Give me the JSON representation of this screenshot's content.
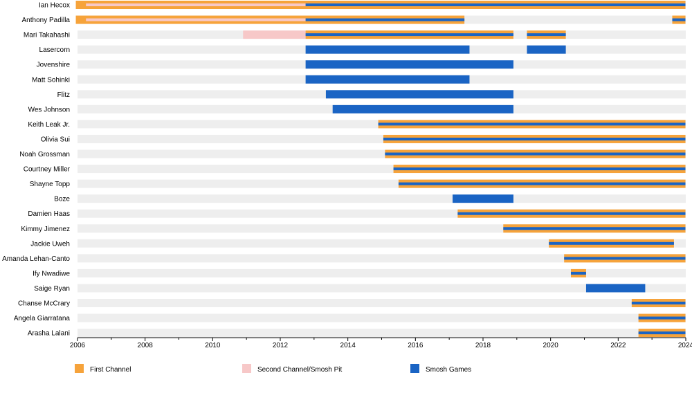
{
  "chart_data": {
    "type": "timeline",
    "title": "",
    "xlabel": "",
    "ylabel": "",
    "xlim": [
      2006.0,
      2024.0
    ],
    "x_ticks": [
      "2006",
      "2008",
      "2010",
      "2012",
      "2014",
      "2016",
      "2018",
      "2020",
      "2022",
      "2024"
    ],
    "categories": [
      "First Channel",
      "Second Channel/Smosh Pit",
      "Smosh Games"
    ],
    "colors": {
      "First Channel": "#f6a33b",
      "Second Channel/Smosh Pit": "#f7c8c8",
      "Smosh Games": "#1a64c4",
      "row_background": "#eeeeee"
    },
    "legend": {
      "placement": "bottom",
      "items": [
        {
          "label": "First Channel",
          "color": "#f6a33b"
        },
        {
          "label": "Second Channel/Smosh Pit",
          "color": "#f7c8c8"
        },
        {
          "label": "Smosh Games",
          "color": "#1a64c4"
        }
      ]
    },
    "rows": [
      {
        "name": "Ian Hecox",
        "periods": [
          {
            "category": "First Channel",
            "start": 2005.95,
            "end": 2023.99
          },
          {
            "category": "Second Channel/Smosh Pit",
            "start": 2006.25,
            "end": 2012.75
          },
          {
            "category": "Smosh Games",
            "start": 2012.75,
            "end": 2023.99
          }
        ]
      },
      {
        "name": "Anthony Padilla",
        "periods": [
          {
            "category": "First Channel",
            "start": 2005.95,
            "end": 2017.45
          },
          {
            "category": "Second Channel/Smosh Pit",
            "start": 2006.25,
            "end": 2012.75
          },
          {
            "category": "Smosh Games",
            "start": 2012.75,
            "end": 2017.45
          },
          {
            "category": "First Channel",
            "start": 2023.6,
            "end": 2023.99
          },
          {
            "category": "Smosh Games",
            "start": 2023.6,
            "end": 2023.99
          }
        ]
      },
      {
        "name": "Mari Takahashi",
        "periods": [
          {
            "category": "Second Channel/Smosh Pit",
            "start": 2010.9,
            "end": 2012.75
          },
          {
            "category": "First Channel",
            "start": 2012.75,
            "end": 2018.9
          },
          {
            "category": "Smosh Games",
            "start": 2012.75,
            "end": 2018.9
          },
          {
            "category": "First Channel",
            "start": 2019.3,
            "end": 2020.45
          },
          {
            "category": "Smosh Games",
            "start": 2019.3,
            "end": 2020.45
          }
        ]
      },
      {
        "name": "Lasercorn",
        "periods": [
          {
            "category": "Smosh Games",
            "start": 2012.75,
            "end": 2017.6
          },
          {
            "category": "Smosh Games",
            "start": 2019.3,
            "end": 2020.45
          }
        ]
      },
      {
        "name": "Jovenshire",
        "periods": [
          {
            "category": "Smosh Games",
            "start": 2012.75,
            "end": 2018.9
          }
        ]
      },
      {
        "name": "Matt Sohinki",
        "periods": [
          {
            "category": "Smosh Games",
            "start": 2012.75,
            "end": 2017.6
          }
        ]
      },
      {
        "name": "Flitz",
        "periods": [
          {
            "category": "Smosh Games",
            "start": 2013.35,
            "end": 2018.9
          }
        ]
      },
      {
        "name": "Wes Johnson",
        "periods": [
          {
            "category": "Smosh Games",
            "start": 2013.55,
            "end": 2018.9
          }
        ]
      },
      {
        "name": "Keith Leak Jr.",
        "periods": [
          {
            "category": "First Channel",
            "start": 2014.9,
            "end": 2023.99
          },
          {
            "category": "Smosh Games",
            "start": 2014.9,
            "end": 2023.99
          }
        ]
      },
      {
        "name": "Olivia Sui",
        "periods": [
          {
            "category": "First Channel",
            "start": 2015.05,
            "end": 2023.99
          },
          {
            "category": "Smosh Games",
            "start": 2015.05,
            "end": 2023.99
          }
        ]
      },
      {
        "name": "Noah Grossman",
        "periods": [
          {
            "category": "First Channel",
            "start": 2015.1,
            "end": 2023.99
          },
          {
            "category": "Smosh Games",
            "start": 2015.1,
            "end": 2023.99
          }
        ]
      },
      {
        "name": "Courtney Miller",
        "periods": [
          {
            "category": "First Channel",
            "start": 2015.35,
            "end": 2023.99
          },
          {
            "category": "Smosh Games",
            "start": 2015.35,
            "end": 2023.99
          }
        ]
      },
      {
        "name": "Shayne Topp",
        "periods": [
          {
            "category": "First Channel",
            "start": 2015.5,
            "end": 2023.99
          },
          {
            "category": "Smosh Games",
            "start": 2015.5,
            "end": 2023.99
          }
        ]
      },
      {
        "name": "Boze",
        "periods": [
          {
            "category": "Smosh Games",
            "start": 2017.1,
            "end": 2018.9
          }
        ]
      },
      {
        "name": "Damien Haas",
        "periods": [
          {
            "category": "First Channel",
            "start": 2017.25,
            "end": 2023.99
          },
          {
            "category": "Smosh Games",
            "start": 2017.25,
            "end": 2023.99
          }
        ]
      },
      {
        "name": "Kimmy Jimenez",
        "periods": [
          {
            "category": "First Channel",
            "start": 2018.6,
            "end": 2023.99
          },
          {
            "category": "Smosh Games",
            "start": 2018.6,
            "end": 2023.99
          }
        ]
      },
      {
        "name": "Jackie Uweh",
        "periods": [
          {
            "category": "First Channel",
            "start": 2019.95,
            "end": 2023.65
          },
          {
            "category": "Smosh Games",
            "start": 2019.95,
            "end": 2023.65
          }
        ]
      },
      {
        "name": "Amanda Lehan-Canto",
        "periods": [
          {
            "category": "First Channel",
            "start": 2020.4,
            "end": 2023.99
          },
          {
            "category": "Smosh Games",
            "start": 2020.4,
            "end": 2023.99
          }
        ]
      },
      {
        "name": "Ify Nwadiwe",
        "periods": [
          {
            "category": "First Channel",
            "start": 2020.6,
            "end": 2021.05
          },
          {
            "category": "Smosh Games",
            "start": 2020.6,
            "end": 2021.05
          }
        ]
      },
      {
        "name": "Saige Ryan",
        "periods": [
          {
            "category": "Smosh Games",
            "start": 2021.05,
            "end": 2022.8
          }
        ]
      },
      {
        "name": "Chanse McCrary",
        "periods": [
          {
            "category": "First Channel",
            "start": 2022.4,
            "end": 2023.99
          },
          {
            "category": "Smosh Games",
            "start": 2022.4,
            "end": 2023.99
          }
        ]
      },
      {
        "name": "Angela Giarratana",
        "periods": [
          {
            "category": "First Channel",
            "start": 2022.6,
            "end": 2023.99
          },
          {
            "category": "Smosh Games",
            "start": 2022.6,
            "end": 2023.99
          }
        ]
      },
      {
        "name": "Arasha Lalani",
        "periods": [
          {
            "category": "First Channel",
            "start": 2022.6,
            "end": 2023.99
          },
          {
            "category": "Smosh Games",
            "start": 2022.6,
            "end": 2023.99
          }
        ]
      }
    ]
  }
}
